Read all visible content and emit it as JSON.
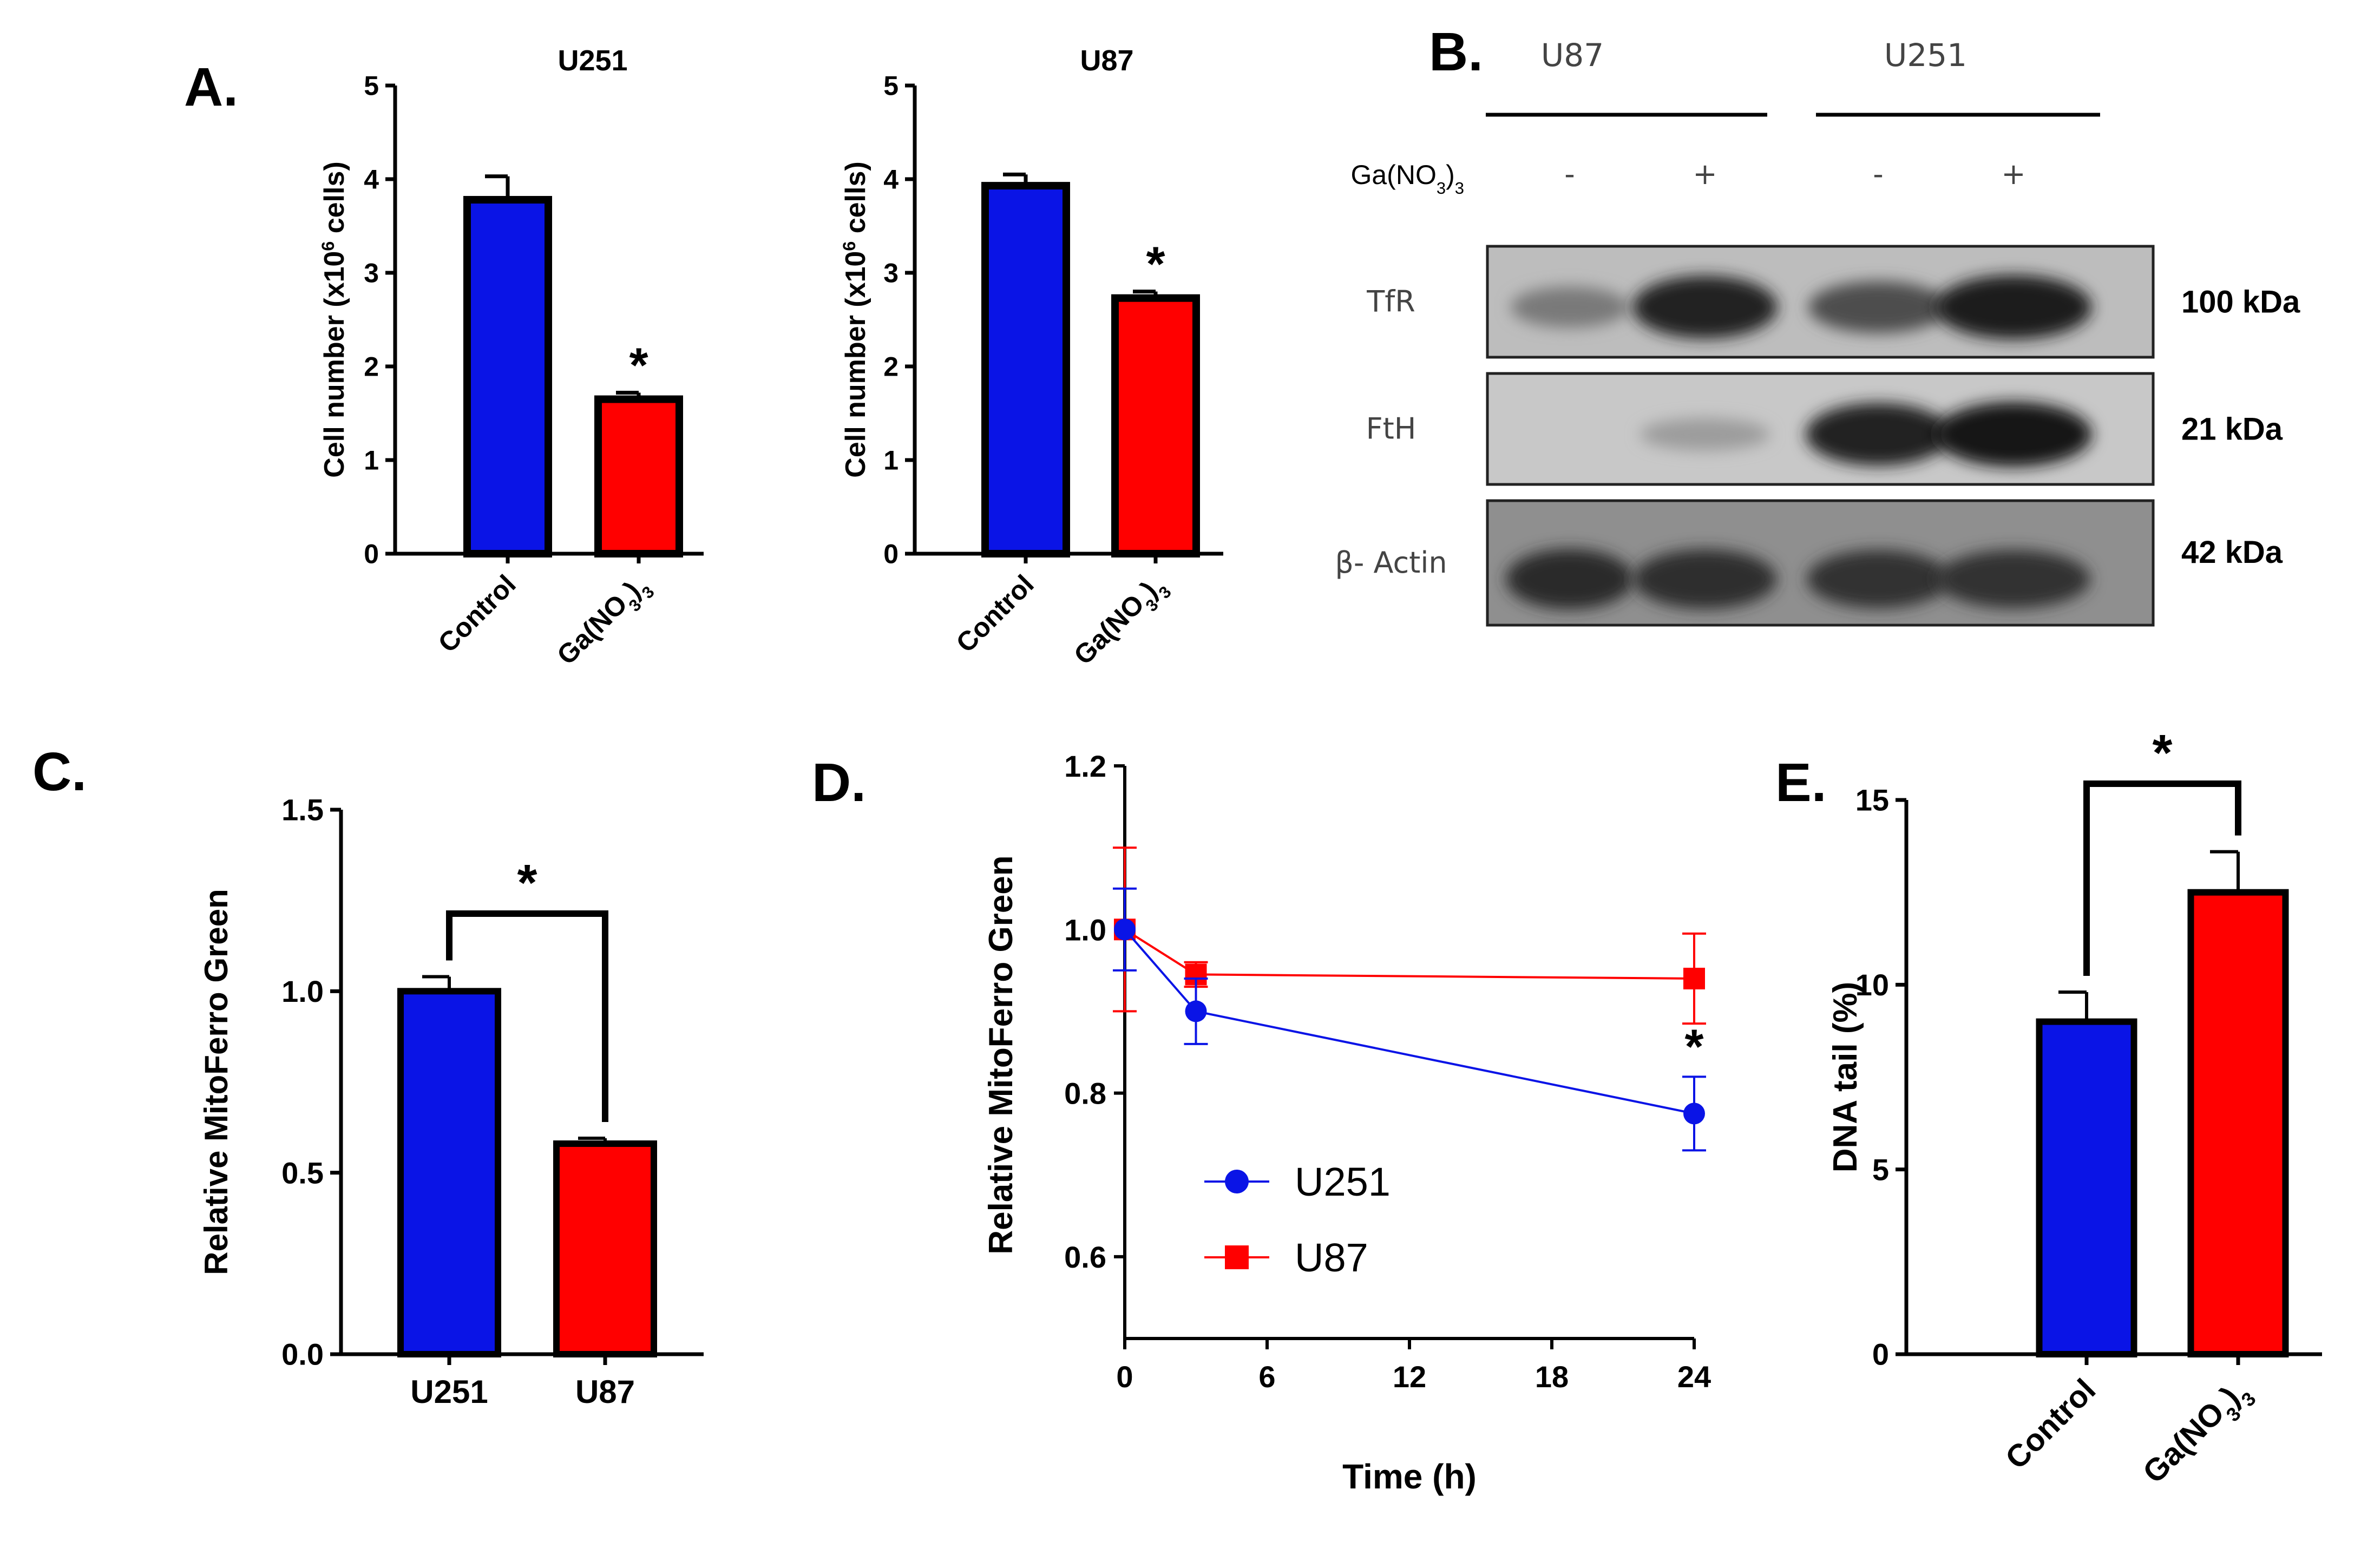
{
  "panels": {
    "A": {
      "label": "A."
    },
    "B": {
      "label": "B."
    },
    "C": {
      "label": "C."
    },
    "D": {
      "label": "D."
    },
    "E": {
      "label": "E."
    }
  },
  "colors": {
    "blue": "#0a14e6",
    "red": "#ff0000",
    "black": "#000000"
  },
  "sig_marker": "*",
  "chart_data": [
    {
      "id": "A1",
      "type": "bar",
      "title": "U251",
      "ylabel": "Cell number (x10^6 cells)",
      "ylabel_parts": {
        "pre": "Cell number (x10",
        "sup": "6",
        "post": " cells)"
      },
      "categories": [
        "Control",
        "Ga(NO3)3"
      ],
      "category_parts": [
        {
          "pre": "Control"
        },
        {
          "pre": "Ga(NO",
          "sub": "3",
          "post": ")",
          "sub2": "3"
        }
      ],
      "values": [
        3.78,
        1.65
      ],
      "errors": [
        0.25,
        0.07
      ],
      "ylim": [
        0,
        5
      ],
      "yticks": [
        "0",
        "1",
        "2",
        "3",
        "4",
        "5"
      ],
      "significant": [
        false,
        true
      ]
    },
    {
      "id": "A2",
      "type": "bar",
      "title": "U87",
      "ylabel": "Cell number (x10^6 cells)",
      "ylabel_parts": {
        "pre": "Cell number (x10",
        "sup": "6",
        "post": " cells)"
      },
      "categories": [
        "Control",
        "Ga(NO3)3"
      ],
      "category_parts": [
        {
          "pre": "Control"
        },
        {
          "pre": "Ga(NO",
          "sub": "3",
          "post": ")",
          "sub2": "3"
        }
      ],
      "values": [
        3.93,
        2.73
      ],
      "errors": [
        0.12,
        0.07
      ],
      "ylim": [
        0,
        5
      ],
      "yticks": [
        "0",
        "1",
        "2",
        "3",
        "4",
        "5"
      ],
      "significant": [
        false,
        true
      ]
    },
    {
      "id": "C",
      "type": "bar",
      "ylabel": "Relative MitoFerro Green",
      "categories": [
        "U251",
        "U87"
      ],
      "values": [
        1.0,
        0.58
      ],
      "errors": [
        0.04,
        0.015
      ],
      "ylim": [
        0,
        1.5
      ],
      "yticks": [
        "0.0",
        "0.5",
        "1.0",
        "1.5"
      ],
      "bracket": true
    },
    {
      "id": "D",
      "type": "line",
      "xlabel": "Time (h)",
      "ylabel": "Relative MitoFerro Green",
      "xticks": [
        "0",
        "6",
        "12",
        "18",
        "24"
      ],
      "yticks": [
        "0.6",
        "0.8",
        "1.0",
        "1.2"
      ],
      "xlim": [
        0,
        24
      ],
      "ylim": [
        0.5,
        1.2
      ],
      "series": [
        {
          "name": "U251",
          "x": [
            0,
            3,
            24
          ],
          "y": [
            1.0,
            0.9,
            0.775
          ],
          "errors": [
            0.05,
            0.04,
            0.045
          ],
          "marker": "circle"
        },
        {
          "name": "U87",
          "x": [
            0,
            3,
            24
          ],
          "y": [
            1.0,
            0.945,
            0.94
          ],
          "errors": [
            0.1,
            0.015,
            0.055
          ],
          "marker": "square"
        }
      ],
      "significant_at": 24
    },
    {
      "id": "E",
      "type": "bar",
      "ylabel": "DNA tail  (%)",
      "categories": [
        "Control",
        "Ga(NO3)3"
      ],
      "category_parts": [
        {
          "pre": "Control"
        },
        {
          "pre": "Ga(NO",
          "sub": "3",
          "post": ")",
          "sub2": "3"
        }
      ],
      "values": [
        9.0,
        12.5
      ],
      "errors": [
        0.8,
        1.1
      ],
      "ylim": [
        0,
        15
      ],
      "yticks": [
        "0",
        "5",
        "10",
        "15"
      ],
      "bracket": true
    }
  ],
  "western_blot": {
    "groups": [
      "U87",
      "U251"
    ],
    "treatment_label": "Ga(NO3)3",
    "treatment_parts": {
      "pre": "Ga(NO",
      "sub": "3",
      "post": ")",
      "sub2": "3"
    },
    "lanes": [
      "-",
      "+",
      "-",
      "+"
    ],
    "rows": [
      {
        "protein": "TfR",
        "size": "100 kDa",
        "intensity": [
          0.45,
          0.95,
          0.7,
          0.98
        ]
      },
      {
        "protein": "FtH",
        "size": "21 kDa",
        "intensity": [
          0.0,
          0.25,
          0.95,
          1.0
        ]
      },
      {
        "protein": "β- Actin",
        "size": "42 kDa",
        "intensity": [
          0.9,
          0.88,
          0.85,
          0.85
        ]
      }
    ]
  }
}
